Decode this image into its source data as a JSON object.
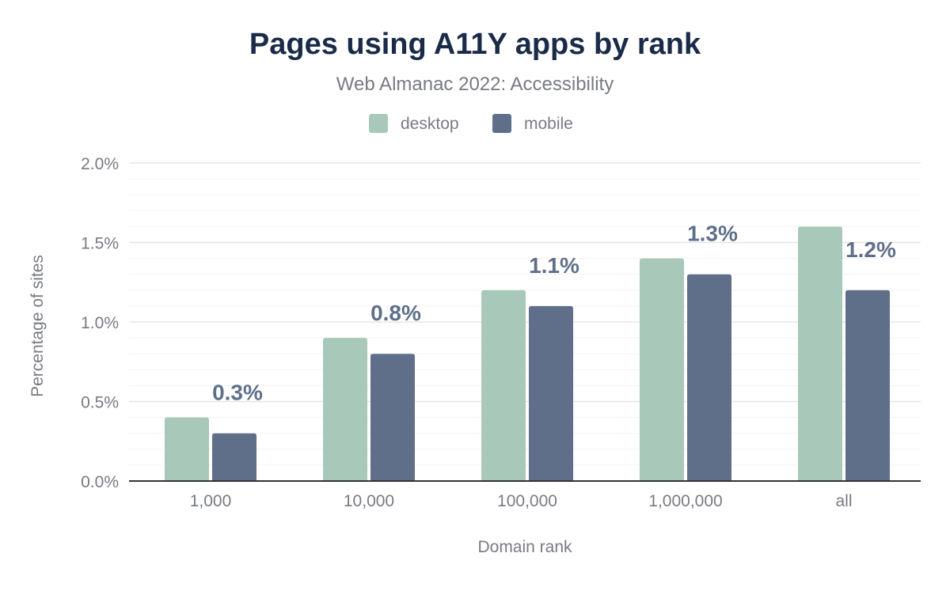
{
  "chart_data": {
    "type": "bar",
    "title": "Pages using A11Y apps by rank",
    "subtitle": "Web Almanac 2022: Accessibility",
    "xlabel": "Domain rank",
    "ylabel": "Percentage of sites",
    "categories": [
      "1,000",
      "10,000",
      "100,000",
      "1,000,000",
      "all"
    ],
    "series": [
      {
        "name": "desktop",
        "color": "#a8c9b9",
        "values": [
          0.4,
          0.9,
          1.2,
          1.4,
          1.6
        ]
      },
      {
        "name": "mobile",
        "color": "#5f6f8a",
        "values": [
          0.3,
          0.8,
          1.1,
          1.3,
          1.2
        ]
      }
    ],
    "data_labels": [
      "0.3%",
      "0.8%",
      "1.1%",
      "1.3%",
      "1.2%"
    ],
    "yticks": [
      "0.0%",
      "0.5%",
      "1.0%",
      "1.5%",
      "2.0%"
    ],
    "ylim": [
      0,
      2.0
    ],
    "grid": true,
    "legend_placement": "top-center",
    "colors": {
      "title": "#1a2b49",
      "text": "#777b82",
      "axis": "#333333",
      "grid": "#eeeeee"
    }
  }
}
